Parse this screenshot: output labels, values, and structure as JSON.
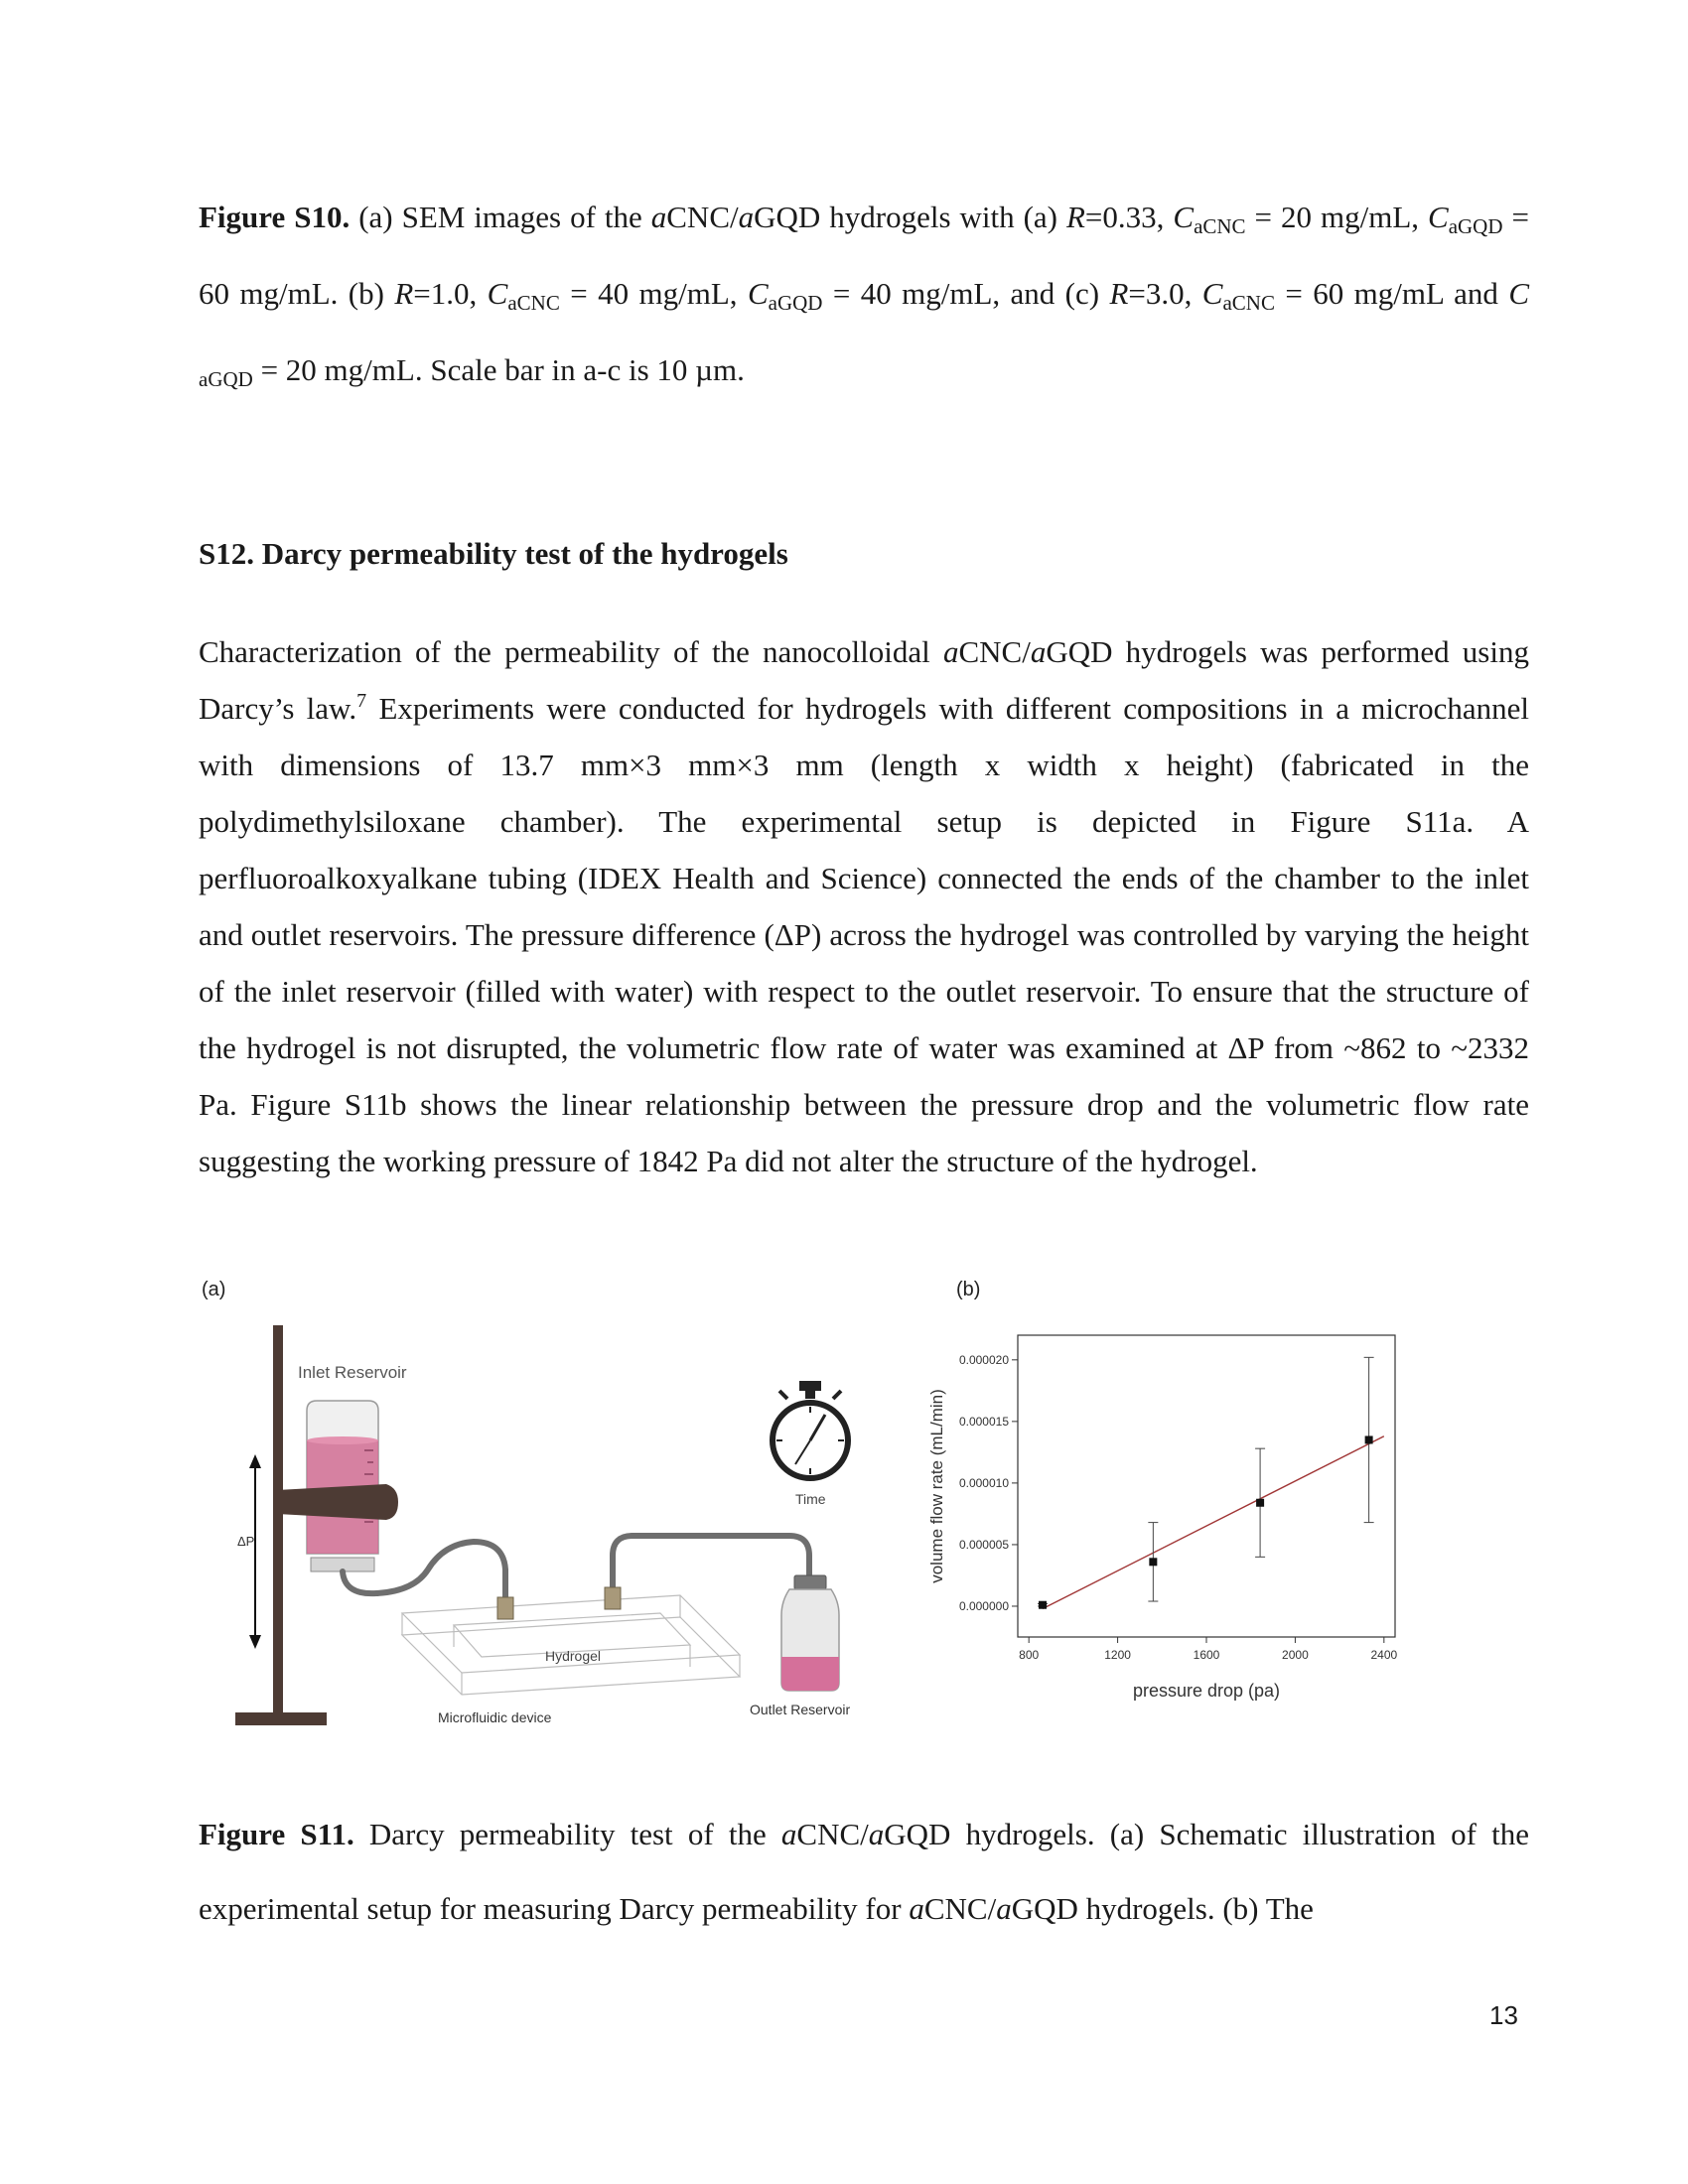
{
  "caption_s10": {
    "label": "Figure S10.",
    "t1": " (a) SEM images of the ",
    "a1": "a",
    "cnc1": "CNC/",
    "a2": "a",
    "gqd1": "GQD hydrogels with (a) ",
    "R": "R",
    "eq1": "=0.33, ",
    "C": "C",
    "sub_acnc": "aCNC",
    "sub_agqd": "aGQD",
    "v1": " = 20 mg/mL, ",
    "v2": " = 60 mg/mL. (b) ",
    "eq2": "=1.0, ",
    "v3": " = 40 mg/mL, ",
    "v4": " = 40 mg/mL, and (c) ",
    "eq3": "=3.0, ",
    "v5": " = 60 mg/mL and ",
    "C_space": "C ",
    "v6": " = 20 mg/mL.  Scale bar in a-c is 10 µm."
  },
  "heading": "S12. Darcy permeability test of the hydrogels",
  "body": {
    "p1": "Characterization of the permeability of the nanocolloidal ",
    "a": "a",
    "p2": "CNC/",
    "p3": "GQD hydrogels was performed using Darcy’s law.",
    "ref": "7",
    "p4": " Experiments were conducted for hydrogels with different compositions in a microchannel with dimensions of 13.7 mm×3 mm×3 mm (length x width x height) (fabricated in the polydimethylsiloxane chamber). The experimental setup is depicted in Figure S11a. A perfluoroalkoxyalkane tubing (IDEX Health and Science) connected the ends of the chamber to the inlet and outlet reservoirs. The pressure difference (ΔP) across the hydrogel was controlled by varying the height of the inlet reservoir (filled with water) with respect to the outlet reservoir. To ensure that the structure of the hydrogel is not disrupted, the volumetric flow rate of water was examined at ΔP from ~862 to ~2332 Pa. Figure S11b shows the linear relationship between the pressure drop and the volumetric flow rate suggesting the working pressure of 1842 Pa did not alter the structure of the hydrogel."
  },
  "figure": {
    "panel_a_label": "(a)",
    "panel_b_label": "(b)",
    "schematic": {
      "inlet_reservoir": "Inlet Reservoir",
      "delta_p": "ΔP",
      "time": "Time",
      "hydrogel": "Hydrogel",
      "microfluidic_device": "Microfluidic device",
      "outlet_reservoir": "Outlet Reservoir"
    }
  },
  "chart_data": {
    "type": "scatter",
    "title": "",
    "xlabel": "pressure drop (pa)",
    "ylabel": "volume flow rate (mL/min)",
    "xlim": [
      750,
      2450
    ],
    "ylim": [
      -2.5e-06,
      2.2e-05
    ],
    "xticks": [
      800,
      1200,
      1600,
      2000,
      2400
    ],
    "xtick_labels": [
      "800",
      "1200",
      "1600",
      "2000",
      "2400"
    ],
    "yticks": [
      0,
      5e-06,
      1e-05,
      1.5e-05,
      2e-05
    ],
    "ytick_labels": [
      "0.000000",
      "0.000005",
      "0.000010",
      "0.000015",
      "0.000020"
    ],
    "x": [
      862,
      1360,
      1842,
      2332
    ],
    "y": [
      1e-07,
      3.6e-06,
      8.4e-06,
      1.35e-05
    ],
    "err": [
      1e-07,
      3.2e-06,
      4.4e-06,
      6.7e-06
    ],
    "fit": {
      "x": [
        862,
        2400
      ],
      "y": [
        -2e-07,
        1.38e-05
      ],
      "color": "#a03535"
    },
    "grid": false,
    "legend": "none",
    "marker_color": "#111111"
  },
  "caption_s11": {
    "label": "Figure S11.",
    "t1": " Darcy permeability test of the ",
    "a": "a",
    "t2": "CNC/",
    "t3": "GQD hydrogels. (a) Schematic illustration of the experimental setup for measuring Darcy permeability for ",
    "t4": "GQD hydrogels. (b) The"
  },
  "page_number": "13"
}
